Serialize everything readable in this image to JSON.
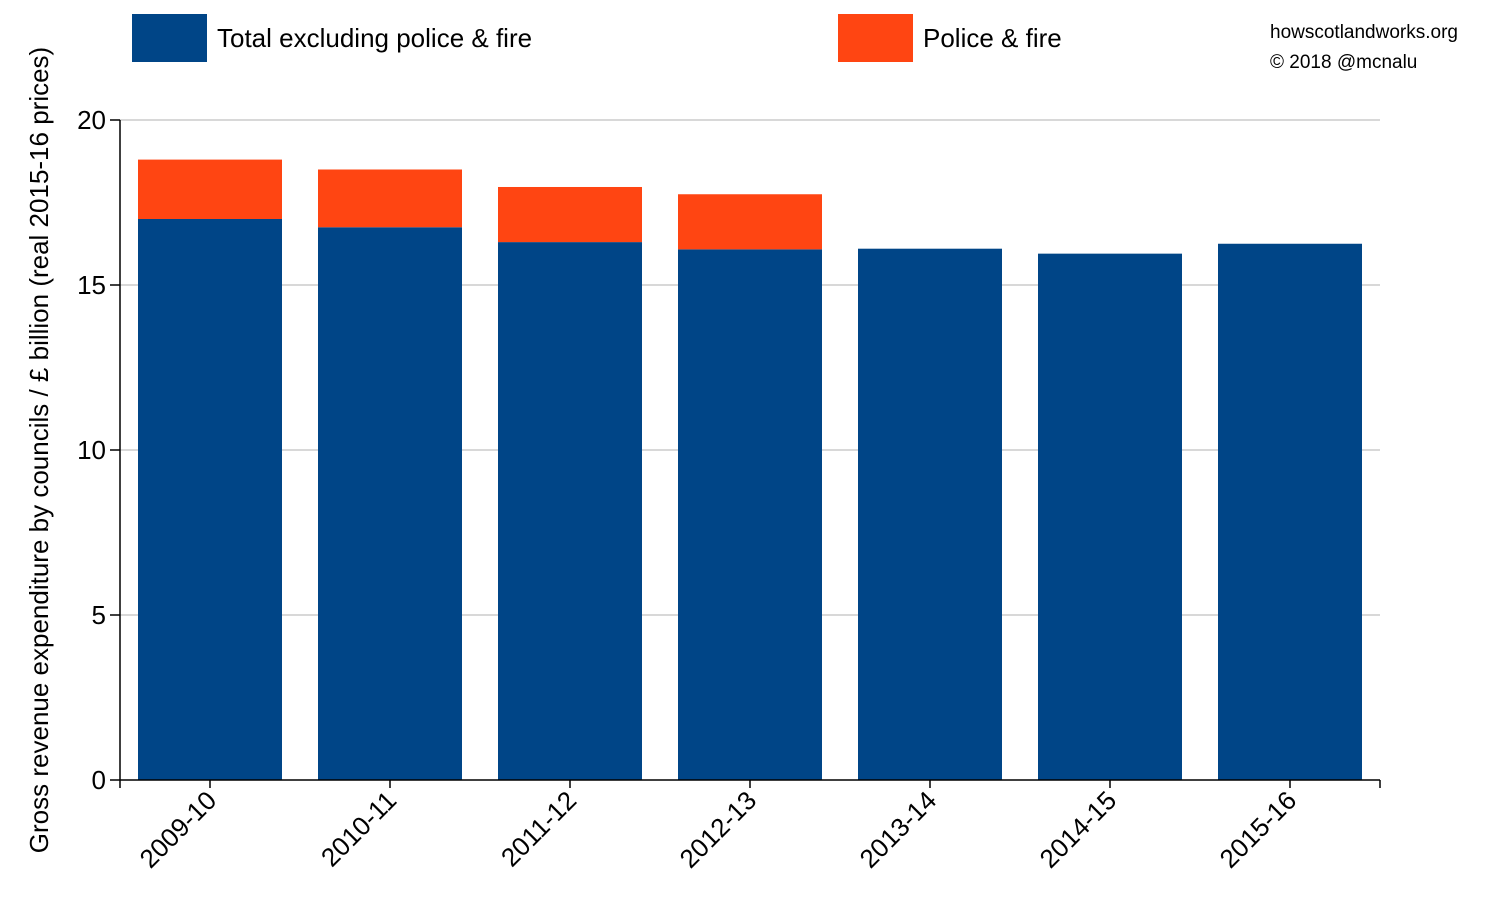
{
  "colors": {
    "base": "#004587",
    "police_fire": "#ff4512",
    "grid": "#b0b0b0",
    "axis": "#000000"
  },
  "credits": {
    "site": "howscotlandworks.org",
    "copyright": "© 2018  @mcnalu"
  },
  "chart_data": {
    "type": "bar",
    "stacked": true,
    "categories": [
      "2009-10",
      "2010-11",
      "2011-12",
      "2012-13",
      "2013-14",
      "2014-15",
      "2015-16"
    ],
    "series": [
      {
        "name": "Total excluding police & fire",
        "color": "#004587",
        "values": [
          17.0,
          16.75,
          16.3,
          16.08,
          16.1,
          15.95,
          16.25
        ]
      },
      {
        "name": "Police & fire",
        "color": "#ff4512",
        "values": [
          1.8,
          1.75,
          1.67,
          1.67,
          0,
          0,
          0
        ]
      }
    ],
    "ylabel": "Gross revenue expenditure by councils / £ billion (real 2015-16 prices)",
    "ylim": [
      0,
      20
    ],
    "yticks": [
      0,
      5,
      10,
      15,
      20
    ],
    "grid": true,
    "legend_position": "top"
  }
}
